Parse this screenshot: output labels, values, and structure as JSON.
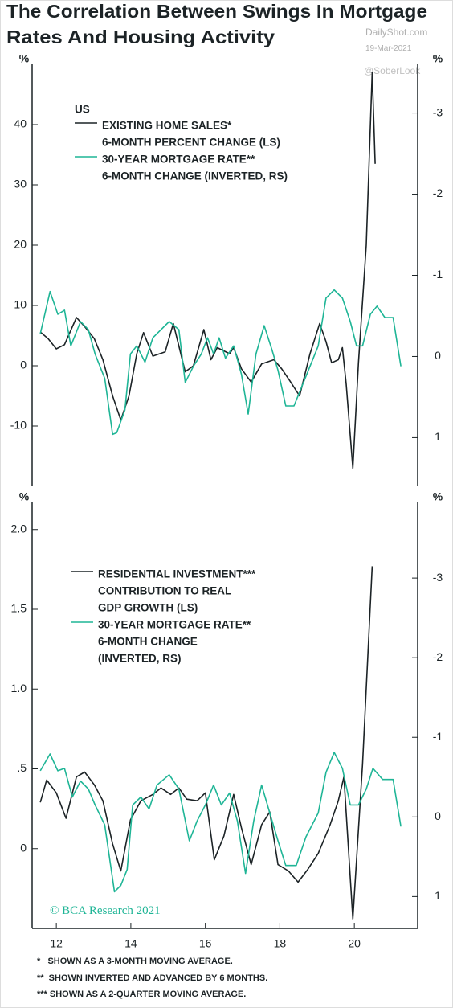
{
  "title": [
    "The Correlation Between Swings In Mortgage",
    "Rates And Housing Activity"
  ],
  "source": {
    "site": "DailyShot.com",
    "date": "19-Mar-2021",
    "handle": "@SoberLook"
  },
  "chart_data": [
    {
      "type": "line",
      "legend_title": "US",
      "ylabel": "%",
      "y2label": "%",
      "xlim": [
        11.35,
        21.7
      ],
      "ylim": [
        -20,
        50
      ],
      "yticks": [
        40,
        30,
        20,
        10,
        0,
        -10
      ],
      "y2lim": [
        1.6,
        -3.6
      ],
      "y2ticks": [
        -3,
        -2,
        -1,
        0,
        1
      ],
      "series": [
        {
          "name": [
            "EXISTING HOME SALES*",
            "6-MONTH PERCENT CHANGE (LS)"
          ],
          "color": "#1c2326",
          "x": [
            11.57,
            11.78,
            12,
            12.22,
            12.54,
            12.76,
            13.02,
            13.25,
            13.51,
            13.73,
            13.95,
            14.16,
            14.34,
            14.59,
            14.92,
            15.14,
            15.46,
            15.68,
            15.96,
            16.15,
            16.32,
            16.65,
            16.76,
            16.97,
            17.23,
            17.51,
            17.84,
            18.05,
            18.27,
            18.53,
            18.81,
            19.07,
            19.24,
            19.39,
            19.57,
            19.68,
            19.78,
            19.96,
            20.11,
            20.32,
            20.48,
            20.56
          ],
          "values": [
            5.6,
            4.5,
            2.8,
            3.5,
            8,
            6.5,
            4.5,
            1,
            -5,
            -9,
            -5,
            2,
            5.5,
            1.6,
            2.3,
            7,
            -1,
            0,
            6,
            1,
            3,
            2,
            3,
            -0.5,
            -2.7,
            0.3,
            1,
            -0.5,
            -2.5,
            -5,
            2,
            7,
            4,
            0.5,
            1,
            3,
            -3,
            -17,
            0.5,
            20,
            48.7,
            33.5
          ]
        },
        {
          "name": [
            "30-YEAR MORTGAGE RATE**",
            "6-MONTH CHANGE (INVERTED, RS)"
          ],
          "color": "#1fb596",
          "axis": "y2",
          "x": [
            11.57,
            11.83,
            12.04,
            12.22,
            12.39,
            12.65,
            12.86,
            13.04,
            13.3,
            13.51,
            13.62,
            13.84,
            13.99,
            14.16,
            14.38,
            14.59,
            14.81,
            15.03,
            15.29,
            15.46,
            15.68,
            15.89,
            16.06,
            16.22,
            16.37,
            16.54,
            16.76,
            16.97,
            17.15,
            17.36,
            17.58,
            17.79,
            17.95,
            18.16,
            18.38,
            18.59,
            18.81,
            19.03,
            19.24,
            19.46,
            19.68,
            19.89,
            20.06,
            20.22,
            20.43,
            20.61,
            20.82,
            21.04,
            21.25
          ],
          "values": [
            -0.28,
            -0.8,
            -0.52,
            -0.57,
            -0.13,
            -0.43,
            -0.33,
            -0.03,
            0.27,
            0.96,
            0.94,
            0.66,
            -0.03,
            -0.13,
            0.07,
            -0.23,
            -0.33,
            -0.43,
            -0.33,
            0.32,
            0.12,
            -0.03,
            -0.23,
            -0.03,
            -0.23,
            0.02,
            -0.13,
            0.22,
            0.71,
            -0.03,
            -0.38,
            -0.08,
            0.17,
            0.61,
            0.61,
            0.37,
            0.12,
            -0.13,
            -0.72,
            -0.82,
            -0.72,
            -0.43,
            -0.13,
            -0.13,
            -0.52,
            -0.62,
            -0.48,
            -0.48,
            0.12
          ]
        }
      ]
    },
    {
      "type": "line",
      "ylabel": "%",
      "y2label": "%",
      "xlim": [
        11.35,
        21.7
      ],
      "xticks": [
        12,
        14,
        16,
        18,
        20
      ],
      "ylim": [
        -0.5,
        2.17
      ],
      "yticks": [
        {
          "value": 2,
          "label": "2.0"
        },
        1.5,
        {
          "value": 1,
          "label": "1.0"
        },
        {
          "value": 0.5,
          "label": ".5"
        },
        0
      ],
      "y2lim": [
        1.4,
        -3.95
      ],
      "y2ticks": [
        -3,
        -2,
        -1,
        0,
        1
      ],
      "annotation": "© BCA Research 2021",
      "series": [
        {
          "name": [
            "RESIDENTIAL INVESTMENT***",
            "CONTRIBUTION TO REAL",
            "GDP GROWTH (LS)"
          ],
          "color": "#1c2326",
          "x": [
            11.57,
            11.74,
            12,
            12.26,
            12.54,
            12.76,
            13.02,
            13.25,
            13.51,
            13.73,
            13.99,
            14.27,
            14.59,
            14.81,
            15.07,
            15.29,
            15.5,
            15.78,
            16,
            16.24,
            16.5,
            16.76,
            16.97,
            17.23,
            17.51,
            17.73,
            17.95,
            18.23,
            18.49,
            18.75,
            19.03,
            19.35,
            19.57,
            19.72,
            19.96,
            20.22,
            20.48
          ],
          "values": [
            0.29,
            0.43,
            0.35,
            0.19,
            0.45,
            0.48,
            0.4,
            0.3,
            0.03,
            -0.14,
            0.18,
            0.3,
            0.34,
            0.38,
            0.34,
            0.38,
            0.31,
            0.3,
            0.35,
            -0.07,
            0.08,
            0.34,
            0.13,
            -0.1,
            0.15,
            0.23,
            -0.1,
            -0.14,
            -0.21,
            -0.13,
            -0.03,
            0.15,
            0.3,
            0.45,
            -0.44,
            0.53,
            1.77
          ]
        },
        {
          "name": [
            "30-YEAR MORTGAGE RATE**",
            "6-MONTH CHANGE",
            "(INVERTED, RS)"
          ],
          "color": "#1fb596",
          "axis": "y2",
          "x": [
            11.57,
            11.83,
            12.04,
            12.22,
            12.43,
            12.65,
            12.86,
            13.04,
            13.3,
            13.56,
            13.73,
            13.9,
            14.05,
            14.27,
            14.49,
            14.7,
            15.03,
            15.29,
            15.57,
            15.78,
            16,
            16.22,
            16.43,
            16.65,
            16.86,
            17.08,
            17.3,
            17.51,
            17.73,
            17.95,
            18.16,
            18.44,
            18.7,
            19.03,
            19.24,
            19.46,
            19.68,
            19.89,
            20.11,
            20.32,
            20.5,
            20.76,
            21.04,
            21.25
          ],
          "values": [
            -0.58,
            -0.79,
            -0.58,
            -0.61,
            -0.25,
            -0.45,
            -0.35,
            -0.15,
            0.1,
            0.94,
            0.86,
            0.66,
            -0.15,
            -0.25,
            -0.1,
            -0.4,
            -0.53,
            -0.35,
            0.3,
            0.05,
            -0.15,
            -0.4,
            -0.15,
            -0.3,
            0.05,
            0.71,
            0.05,
            -0.4,
            -0.05,
            0.3,
            0.61,
            0.61,
            0.25,
            -0.05,
            -0.56,
            -0.81,
            -0.61,
            -0.15,
            -0.15,
            -0.35,
            -0.61,
            -0.47,
            -0.47,
            0.12
          ]
        }
      ]
    }
  ],
  "footnotes": [
    "*   SHOWN AS A 3-MONTH MOVING AVERAGE.",
    "**  SHOWN INVERTED AND ADVANCED BY 6 MONTHS.",
    "*** SHOWN AS A 2-QUARTER MOVING AVERAGE."
  ]
}
